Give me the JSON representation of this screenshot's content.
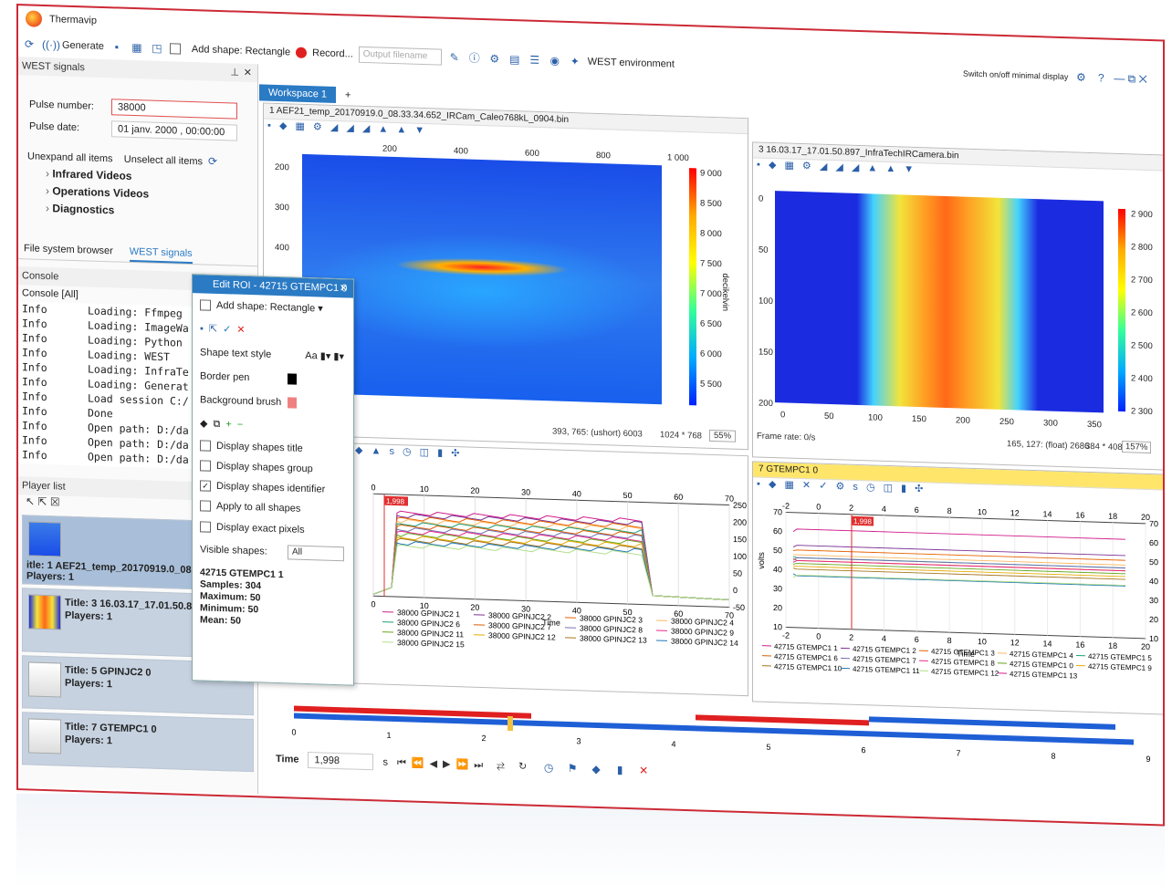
{
  "app": {
    "title": "Thermavip"
  },
  "toolbar": {
    "generate": "Generate",
    "add_shape": "Add shape: Rectangle",
    "record": "Record...",
    "output_placeholder": "Output filename",
    "west_env": "WEST environment",
    "minimal": "Switch on/off minimal display"
  },
  "west": {
    "panel_title": "WEST signals",
    "pulse_label": "Pulse number:",
    "pulse_value": "38000",
    "date_label": "Pulse date:",
    "date_value": "01 janv. 2000 , 00:00:00",
    "unexpand": "Unexpand all items",
    "unselect": "Unselect all items",
    "tree": [
      "Infrared Videos",
      "Operations Videos",
      "Diagnostics"
    ],
    "tabs": [
      "File system browser",
      "WEST signals"
    ]
  },
  "console": {
    "title": "Console",
    "subtitle": "Console [All]",
    "rows": [
      {
        "lvl": "Info",
        "msg": "Loading: Ffmpeg"
      },
      {
        "lvl": "Info",
        "msg": "Loading: ImageWa"
      },
      {
        "lvl": "Info",
        "msg": "Loading: Python"
      },
      {
        "lvl": "Info",
        "msg": "Loading: WEST"
      },
      {
        "lvl": "Info",
        "msg": "Loading: InfraTe"
      },
      {
        "lvl": "Info",
        "msg": "Loading: Generat"
      },
      {
        "lvl": "Info",
        "msg": "Load session C:/"
      },
      {
        "lvl": "Info",
        "msg": "Done"
      },
      {
        "lvl": "Info",
        "msg": "Open path: D:/da"
      },
      {
        "lvl": "Info",
        "msg": "Open path: D:/da"
      },
      {
        "lvl": "Info",
        "msg": "Open path: D:/da"
      }
    ]
  },
  "players": {
    "title": "Player list",
    "items": [
      {
        "title": "itle: 1 AEF21_temp_20170919.0_08.33.3",
        "players": "Players: 1"
      },
      {
        "title": "Title: 3 16.03.17_17.01.50.897",
        "players": "Players: 1"
      },
      {
        "title": "Title: 5 GPINJC2 0",
        "players": "Players: 1"
      },
      {
        "title": "Title: 7 GTEMPC1 0",
        "players": "Players: 1"
      }
    ]
  },
  "workspace": {
    "tab": "Workspace 1"
  },
  "pane1": {
    "title": "1 AEF21_temp_20170919.0_08.33.34.652_IRCam_Caleo768kL_0904.bin",
    "xticks": [
      "200",
      "400",
      "600",
      "800",
      "1 000"
    ],
    "yticks": [
      "200",
      "300",
      "400",
      "500",
      "600",
      "700"
    ],
    "cbticks": [
      "9 000",
      "8 500",
      "8 000",
      "7 500",
      "7 000",
      "6 500",
      "6 000",
      "5 500"
    ],
    "cblabel": "decikelvin",
    "status_pos": "393, 765: (ushort) 6003",
    "status_size": "1024 * 768",
    "zoom": "55%"
  },
  "pane2": {
    "title": "3 16.03.17_17.01.50.897_InfraTechIRCamera.bin",
    "xticks": [
      "0",
      "50",
      "100",
      "150",
      "200",
      "250",
      "300",
      "350"
    ],
    "yticks": [
      "0",
      "50",
      "100",
      "150",
      "200"
    ],
    "cbticks": [
      "2 900",
      "2 800",
      "2 700",
      "2 600",
      "2 500",
      "2 400",
      "2 300"
    ],
    "frame_rate": "Frame rate: 0/s",
    "status_pos": "165, 127: (float) 2686",
    "status_size": "384 * 408",
    "zoom": "157%"
  },
  "pane3": {
    "xticks": [
      "0",
      "10",
      "20",
      "30",
      "40",
      "50",
      "60",
      "70"
    ],
    "yticks": [
      "250",
      "200",
      "150",
      "100",
      "50",
      "0",
      "-50"
    ],
    "xlabel": "Time",
    "cursor": "1,998",
    "legend": [
      "38000 GPINJC2 1",
      "38000 GPINJC2 2",
      "38000 GPINJC2 3",
      "38000 GPINJC2 4",
      "38000 GPINJC2 6",
      "38000 GPINJC2 7",
      "38000 GPINJC2 8",
      "38000 GPINJC2 9",
      "38000 GPINJC2 11",
      "38000 GPINJC2 12",
      "38000 GPINJC2 13",
      "38000 GPINJC2 14",
      "38000 GPINJC2 15"
    ]
  },
  "pane4": {
    "title": "7 GTEMPC1 0",
    "xticks": [
      "-2",
      "0",
      "2",
      "4",
      "6",
      "8",
      "10",
      "12",
      "14",
      "16",
      "18",
      "20"
    ],
    "yticks": [
      "70",
      "60",
      "50",
      "40",
      "30",
      "20",
      "10"
    ],
    "ylabel": "volts",
    "xlabel": "Time",
    "cursor": "1,998",
    "legend": [
      "42715 GTEMPC1 1",
      "42715 GTEMPC1 2",
      "42715 GTEMPC1 3",
      "42715 GTEMPC1 4",
      "42715 GTEMPC1 5",
      "42715 GTEMPC1 6",
      "42715 GTEMPC1 7",
      "42715 GTEMPC1 8",
      "42715 GTEMPC1 0",
      "42715 GTEMPC1 9",
      "42715 GTEMPC1 10",
      "42715 GTEMPC1 11",
      "42715 GTEMPC1 12",
      "42715 GTEMPC1 13"
    ]
  },
  "roi": {
    "title": "Edit ROI - 42715 GTEMPC1 0",
    "add_shape": "Add shape: Rectangle",
    "text_style": "Shape text style",
    "border_pen": "Border pen",
    "background_brush": "Background brush",
    "opt_title": "Display shapes title",
    "opt_group": "Display shapes group",
    "opt_identifier": "Display shapes identifier",
    "opt_apply": "Apply to all shapes",
    "opt_exact": "Display exact pixels",
    "visible_label": "Visible shapes:",
    "visible_value": "All",
    "stat_title": "42715 GTEMPC1 1",
    "samples": "Samples: 304",
    "maximum": "Maximum: 50",
    "minimum": "Minimum: 50",
    "mean": "Mean: 50"
  },
  "timeline": {
    "ticks": [
      "0",
      "1",
      "2",
      "3",
      "4",
      "5",
      "6",
      "7",
      "8",
      "9"
    ],
    "time_label": "Time",
    "time_value": "1,998",
    "unit": "s"
  }
}
